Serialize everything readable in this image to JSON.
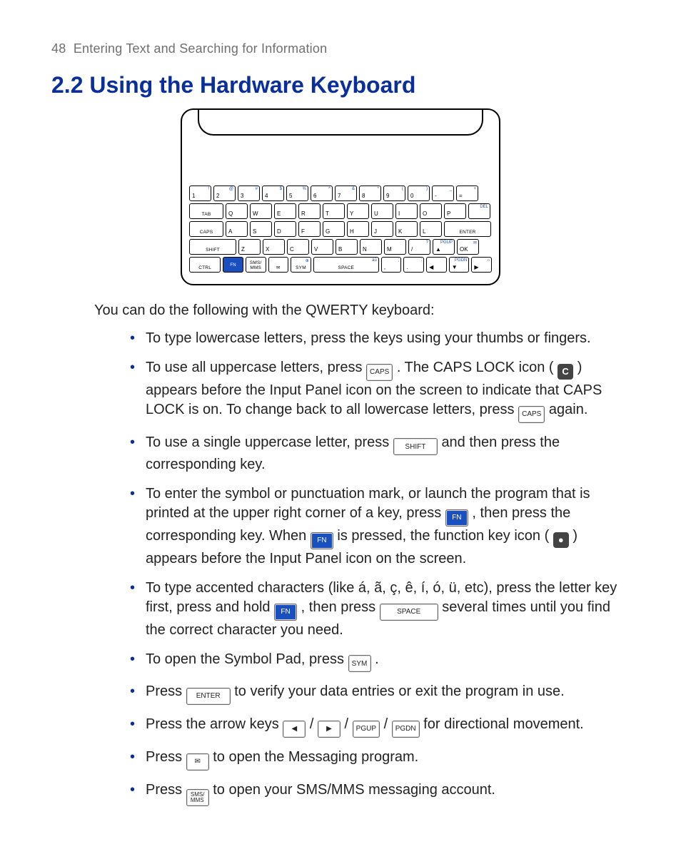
{
  "header": {
    "page_number": "48",
    "section_title": "Entering Text and Searching for Information"
  },
  "heading": "2.2  Using the Hardware Keyboard",
  "intro": "You can do the following with the QWERTY keyboard:",
  "keyboard": {
    "rows": [
      [
        {
          "main": "1",
          "alt": "!",
          "w": "w1"
        },
        {
          "main": "2",
          "alt": "@",
          "w": "w1"
        },
        {
          "main": "3",
          "alt": "#",
          "w": "w1"
        },
        {
          "main": "4",
          "alt": "$",
          "w": "w1"
        },
        {
          "main": "5",
          "alt": "%",
          "w": "w1"
        },
        {
          "main": "6",
          "alt": "^",
          "w": "w1"
        },
        {
          "main": "7",
          "alt": "&",
          "w": "w1"
        },
        {
          "main": "8",
          "alt": "*",
          "w": "w1"
        },
        {
          "main": "9",
          "alt": "(",
          "w": "w1"
        },
        {
          "main": "0",
          "alt": ")",
          "w": "w1"
        },
        {
          "main": "-",
          "alt": "_",
          "w": "w1"
        },
        {
          "main": "=",
          "alt": "+",
          "w": "w1"
        }
      ],
      [
        {
          "main": "TAB",
          "w": "w15",
          "center": true
        },
        {
          "main": "Q",
          "w": "w1"
        },
        {
          "main": "W",
          "w": "w1"
        },
        {
          "main": "E",
          "w": "w1"
        },
        {
          "main": "R",
          "w": "w1"
        },
        {
          "main": "T",
          "w": "w1"
        },
        {
          "main": "Y",
          "w": "w1"
        },
        {
          "main": "U",
          "w": "w1"
        },
        {
          "main": "I",
          "w": "w1"
        },
        {
          "main": "O",
          "w": "w1"
        },
        {
          "main": "P",
          "w": "w1"
        },
        {
          "main": "",
          "alt": "DEL",
          "w": "w1"
        }
      ],
      [
        {
          "main": "CAPS",
          "w": "w15",
          "center": true
        },
        {
          "main": "A",
          "w": "w1"
        },
        {
          "main": "S",
          "w": "w1"
        },
        {
          "main": "D",
          "w": "w1"
        },
        {
          "main": "F",
          "w": "w1"
        },
        {
          "main": "G",
          "w": "w1"
        },
        {
          "main": "H",
          "w": "w1"
        },
        {
          "main": "J",
          "w": "w1"
        },
        {
          "main": "K",
          "w": "w1"
        },
        {
          "main": "L",
          "w": "w1"
        },
        {
          "main": "ENTER",
          "w": "w2",
          "center": true
        }
      ],
      [
        {
          "main": "SHIFT",
          "w": "w2",
          "center": true
        },
        {
          "main": "Z",
          "w": "w1"
        },
        {
          "main": "X",
          "w": "w1"
        },
        {
          "main": "C",
          "w": "w1"
        },
        {
          "main": "V",
          "w": "w1"
        },
        {
          "main": "B",
          "w": "w1"
        },
        {
          "main": "N",
          "w": "w1"
        },
        {
          "main": "M",
          "w": "w1"
        },
        {
          "main": "/",
          "alt": "?",
          "w": "w1"
        },
        {
          "main": "▲",
          "alt": "PGUP",
          "w": "w1"
        },
        {
          "main": "OK",
          "alt": "✉",
          "w": "w1"
        }
      ],
      [
        {
          "main": "CTRL",
          "w": "w15",
          "center": true
        },
        {
          "main": "FN",
          "w": "w1",
          "fn": true,
          "center": true
        },
        {
          "main": "SMS/\nMMS",
          "w": "w1",
          "center": true
        },
        {
          "main": "✉",
          "w": "w1",
          "center": true
        },
        {
          "main": "SYM",
          "alt": "⊕",
          "w": "w1",
          "center": true
        },
        {
          "main": "SPACE",
          "alt": "áü",
          "w": "wsp",
          "center": true
        },
        {
          "main": ",",
          "alt": ";",
          "w": "w1"
        },
        {
          "main": ".",
          "alt": ":",
          "w": "w1"
        },
        {
          "main": "◀",
          "w": "w1"
        },
        {
          "main": "▼",
          "alt": "PGDN",
          "w": "w1"
        },
        {
          "main": "▶",
          "alt": "⌂",
          "w": "w1"
        }
      ]
    ]
  },
  "bullets": {
    "b1": "To type lowercase letters, press the keys using your thumbs or fingers.",
    "b2a": "To use all uppercase letters, press ",
    "b2b": ". The CAPS LOCK icon ( ",
    "b2c": " ) appears before the Input Panel icon on the screen to indicate that CAPS LOCK is on. To change back to all lowercase letters, press ",
    "b2d": " again.",
    "b3a": "To use a single uppercase letter, press ",
    "b3b": " and then press the corresponding key.",
    "b4a": "To enter the symbol or punctuation mark, or launch the program that is printed at the upper right corner of a key, press ",
    "b4b": " , then press the corresponding key. When ",
    "b4c": " is pressed, the function key icon ( ",
    "b4d": " ) appears before the Input Panel icon on the screen.",
    "b5a": "To type accented characters (like á, ã, ç, ê, í, ó, ü, etc), press the letter key first, press and hold ",
    "b5b": ", then press ",
    "b5c": " several times until you find the correct character you need.",
    "b6a": "To open the Symbol Pad, press ",
    "b6b": ".",
    "b7a": "Press ",
    "b7b": " to verify your data entries or exit the program in use.",
    "b8a": "Press the arrow keys ",
    "b8sep": " / ",
    "b8b": " for directional movement.",
    "b9a": "Press ",
    "b9b": " to open the Messaging program.",
    "b10a": "Press ",
    "b10b": " to open your SMS/MMS messaging account."
  },
  "labels": {
    "caps": "CAPS",
    "shift": "SHIFT",
    "fn": "FN",
    "space": "SPACE",
    "sym": "SYM",
    "enter": "ENTER",
    "mail": "✉",
    "sms": "SMS/\nMMS",
    "pgup": "PGUP",
    "pgdn": "PGDN",
    "arrow_left": "◀",
    "arrow_right": "▶",
    "arrow_down": "▼",
    "arrow_up": "▲",
    "caps_badge": "C",
    "fn_badge": "●"
  }
}
